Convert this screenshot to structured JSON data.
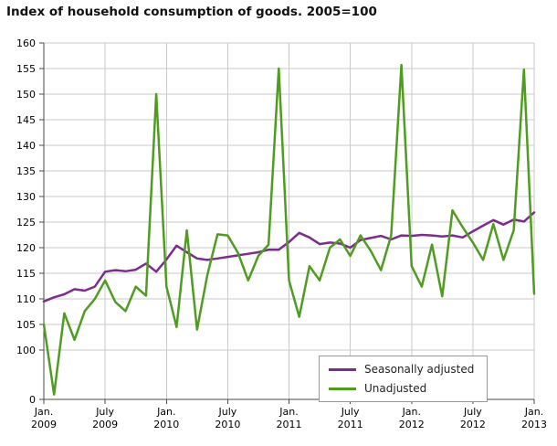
{
  "chart_data": {
    "type": "line",
    "title": "Index of household consumption of goods. 2005=100",
    "x_unit": "month",
    "x_months": [
      "2009-01",
      "2009-02",
      "2009-03",
      "2009-04",
      "2009-05",
      "2009-06",
      "2009-07",
      "2009-08",
      "2009-09",
      "2009-10",
      "2009-11",
      "2009-12",
      "2010-01",
      "2010-02",
      "2010-03",
      "2010-04",
      "2010-05",
      "2010-06",
      "2010-07",
      "2010-08",
      "2010-09",
      "2010-10",
      "2010-11",
      "2010-12",
      "2011-01",
      "2011-02",
      "2011-03",
      "2011-04",
      "2011-05",
      "2011-06",
      "2011-07",
      "2011-08",
      "2011-09",
      "2011-10",
      "2011-11",
      "2011-12",
      "2012-01",
      "2012-02",
      "2012-03",
      "2012-04",
      "2012-05",
      "2012-06",
      "2012-07",
      "2012-08",
      "2012-09",
      "2012-10",
      "2012-11",
      "2012-12",
      "2013-01"
    ],
    "x_ticks": [
      {
        "month_index": 0,
        "label_line1": "Jan.",
        "label_line2": "2009"
      },
      {
        "month_index": 6,
        "label_line1": "July",
        "label_line2": "2009"
      },
      {
        "month_index": 12,
        "label_line1": "Jan.",
        "label_line2": "2010"
      },
      {
        "month_index": 18,
        "label_line1": "July",
        "label_line2": "2010"
      },
      {
        "month_index": 24,
        "label_line1": "Jan.",
        "label_line2": "2011"
      },
      {
        "month_index": 30,
        "label_line1": "July",
        "label_line2": "2011"
      },
      {
        "month_index": 36,
        "label_line1": "Jan.",
        "label_line2": "2012"
      },
      {
        "month_index": 42,
        "label_line1": "July",
        "label_line2": "2012"
      },
      {
        "month_index": 48,
        "label_line1": "Jan.",
        "label_line2": "2013"
      }
    ],
    "y_ticks": [
      0,
      100,
      105,
      110,
      115,
      120,
      125,
      130,
      135,
      140,
      145,
      150,
      155,
      160
    ],
    "y_axis_break_between": [
      0,
      100
    ],
    "ylim_main": [
      100,
      160
    ],
    "grid": true,
    "legend_position": "bottom-right",
    "colors": {
      "grid": "#c9c9c9",
      "axis": "#4a4a4a",
      "text": "#000000"
    },
    "series": [
      {
        "name": "Seasonally adjusted",
        "color": "#7b2d8e",
        "values": [
          109.5,
          110.3,
          110.9,
          111.9,
          111.6,
          112.4,
          115.3,
          115.6,
          115.4,
          115.7,
          116.9,
          115.3,
          117.7,
          120.4,
          119.1,
          117.9,
          117.6,
          117.9,
          118.2,
          118.5,
          118.8,
          119.1,
          119.6,
          119.6,
          121.1,
          122.9,
          122.0,
          120.7,
          121.0,
          120.8,
          120.0,
          121.5,
          121.9,
          122.3,
          121.6,
          122.4,
          122.3,
          122.5,
          122.4,
          122.2,
          122.4,
          122.0,
          123.2,
          124.3,
          125.4,
          124.5,
          125.5,
          125.1,
          126.9
        ]
      },
      {
        "name": "Unadjusted",
        "color": "#4f9c21",
        "values": [
          105.0,
          10.0,
          107.2,
          102.0,
          107.6,
          110.0,
          113.6,
          109.4,
          107.6,
          112.4,
          110.6,
          150.0,
          112.4,
          104.5,
          123.4,
          104.0,
          114.6,
          122.6,
          122.4,
          119.0,
          113.6,
          118.4,
          120.6,
          155.0,
          113.6,
          106.5,
          116.4,
          113.6,
          120.0,
          121.6,
          118.4,
          122.4,
          119.4,
          115.6,
          122.4,
          155.7,
          116.4,
          112.4,
          120.6,
          110.5,
          127.3,
          124.0,
          121.0,
          117.6,
          124.6,
          117.6,
          123.4,
          154.8,
          111.0
        ]
      }
    ]
  },
  "legend": {
    "items": [
      {
        "label": "Seasonally adjusted"
      },
      {
        "label": "Unadjusted"
      }
    ]
  }
}
